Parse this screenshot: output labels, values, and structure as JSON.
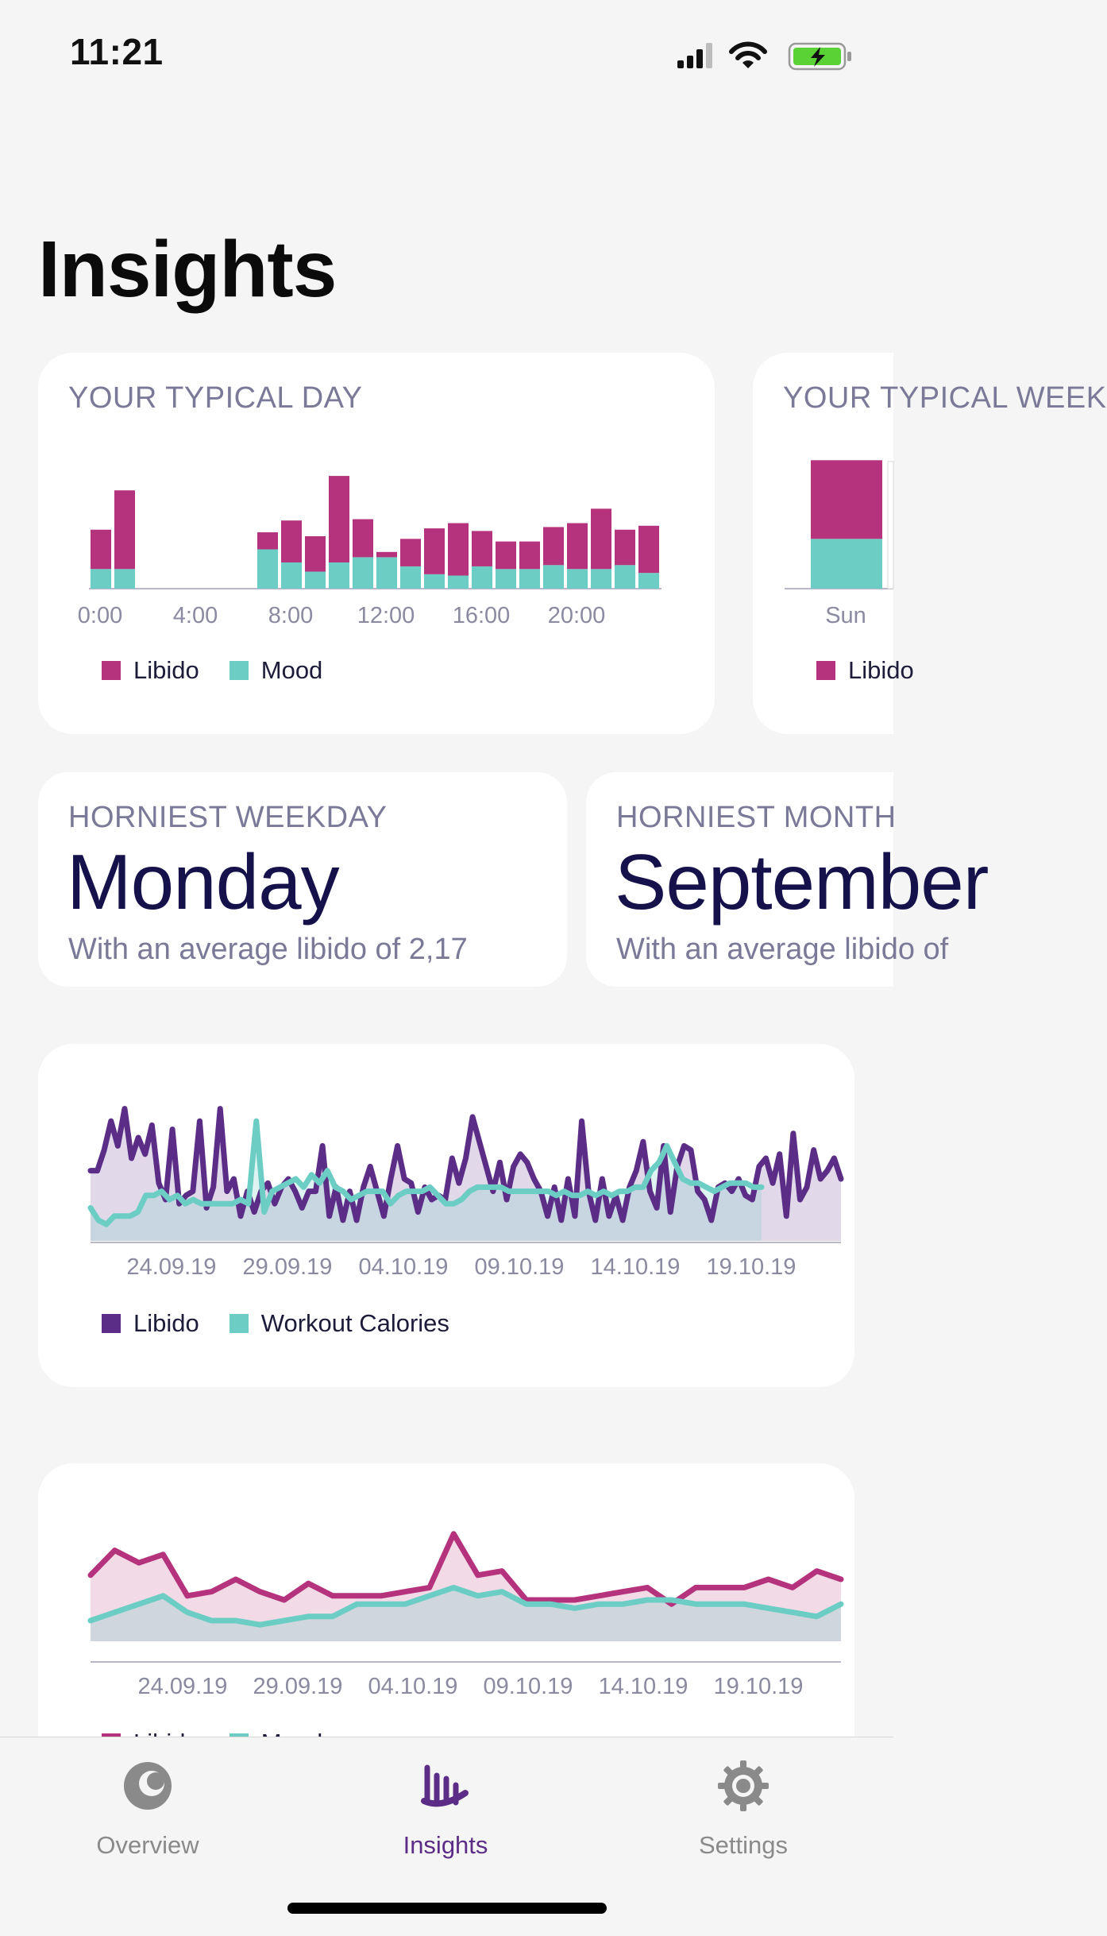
{
  "status_bar": {
    "time": "11:21"
  },
  "page": {
    "title": "Insights"
  },
  "colors": {
    "libido": "#b5337c",
    "mood": "#6ccdc5",
    "libido_dark": "#5b2d86",
    "workout": "#6ccdc5",
    "accent": "#5b2d86"
  },
  "typical_day": {
    "title": "YOUR TYPICAL DAY",
    "legend": [
      "Libido",
      "Mood"
    ],
    "chart_data": {
      "type": "bar",
      "stacked": true,
      "x_ticks": [
        "0:00",
        "4:00",
        "8:00",
        "12:00",
        "16:00",
        "20:00"
      ],
      "categories": [
        "0",
        "1",
        "2",
        "3",
        "4",
        "5",
        "6",
        "7",
        "8",
        "9",
        "10",
        "11",
        "12",
        "13",
        "14",
        "15",
        "16",
        "17",
        "18",
        "19",
        "20",
        "21",
        "22",
        "23"
      ],
      "series": [
        {
          "name": "Mood",
          "values": [
            0.75,
            0.75,
            0,
            0,
            0,
            0,
            0,
            1.5,
            1.0,
            0.65,
            1.0,
            1.2,
            1.2,
            0.85,
            0.55,
            0.5,
            0.85,
            0.75,
            0.75,
            0.9,
            0.75,
            0.75,
            0.9,
            0.6
          ]
        },
        {
          "name": "Libido",
          "values": [
            1.5,
            3.0,
            0,
            0,
            0,
            0,
            0,
            0.65,
            1.6,
            1.35,
            3.3,
            1.45,
            0.2,
            1.05,
            1.75,
            2.0,
            1.35,
            1.05,
            1.05,
            1.45,
            1.75,
            2.3,
            1.35,
            1.8
          ]
        }
      ],
      "ylim": [
        0,
        5
      ]
    }
  },
  "typical_week": {
    "title": "YOUR TYPICAL WEEK",
    "x_ticks": [
      "Sun"
    ],
    "legend": [
      "Libido"
    ],
    "chart_data": {
      "type": "bar",
      "stacked": true,
      "categories": [
        "Sun"
      ],
      "series": [
        {
          "name": "Mood",
          "values": [
            1.9
          ]
        },
        {
          "name": "Libido",
          "values": [
            3.0
          ]
        }
      ],
      "ylim": [
        0,
        5
      ]
    }
  },
  "horniest_weekday": {
    "title": "HORNIEST WEEKDAY",
    "value": "Monday",
    "subtitle": "With an average libido of 2,17"
  },
  "horniest_month": {
    "title": "HORNIEST MONTH",
    "value": "September",
    "subtitle": "With an average libido of"
  },
  "libido_workout": {
    "legend": [
      "Libido",
      "Workout Calories"
    ],
    "chart_data": {
      "type": "area",
      "x_ticks": [
        "24.09.19",
        "29.09.19",
        "04.10.19",
        "09.10.19",
        "14.10.19",
        "19.10.19"
      ],
      "series": [
        {
          "name": "Libido",
          "values": [
            1.7,
            1.7,
            2.2,
            2.9,
            2.3,
            3.2,
            2.0,
            2.5,
            2.1,
            2.8,
            1.4,
            1.0,
            2.7,
            0.9,
            1.1,
            1.2,
            2.9,
            0.8,
            1.3,
            3.2,
            1.2,
            1.5,
            0.6,
            1.2,
            0.7,
            1.2,
            1.4,
            0.9,
            1.3,
            1.5,
            1.2,
            0.8,
            1.2,
            1.2,
            2.3,
            0.6,
            1.3,
            0.5,
            1.2,
            0.5,
            1.3,
            1.8,
            1.2,
            0.6,
            1.5,
            2.3,
            1.5,
            1.4,
            0.7,
            1.3,
            1.0,
            1.1,
            1.0,
            2.0,
            1.4,
            2.0,
            3.0,
            2.4,
            1.8,
            1.2,
            1.9,
            1.0,
            1.8,
            2.1,
            1.9,
            1.5,
            1.2,
            0.6,
            1.3,
            0.5,
            1.5,
            0.6,
            2.9,
            1.2,
            0.5,
            1.5,
            0.6,
            1.1,
            0.5,
            1.3,
            1.7,
            2.4,
            1.2,
            0.8,
            2.3,
            0.7,
            1.8,
            2.3,
            2.2,
            1.2,
            1.0,
            0.5,
            1.3,
            1.4,
            1.2,
            1.5,
            1.1,
            1.0,
            1.8,
            2.0,
            1.4,
            2.1,
            0.6,
            2.6,
            1.0,
            1.3,
            2.2,
            1.5,
            1.7,
            2.0,
            1.5
          ]
        },
        {
          "name": "Workout Calories",
          "values": [
            0.8,
            0.5,
            0.4,
            0.6,
            0.6,
            0.6,
            0.7,
            1.1,
            1.1,
            1.2,
            1.0,
            1.1,
            0.9,
            1.0,
            0.9,
            0.9,
            0.9,
            0.9,
            0.9,
            1.0,
            0.9,
            2.9,
            0.7,
            1.2,
            1.3,
            1.4,
            1.5,
            1.3,
            1.6,
            1.4,
            1.7,
            1.3,
            1.2,
            1.0,
            1.1,
            1.2,
            1.2,
            1.2,
            0.9,
            1.1,
            1.2,
            1.2,
            1.2,
            1.3,
            1.1,
            0.9,
            0.9,
            1.0,
            1.2,
            1.3,
            1.3,
            1.3,
            1.3,
            1.2,
            1.2,
            1.2,
            1.2,
            1.2,
            1.2,
            1.1,
            1.2,
            1.1,
            1.1,
            1.2,
            1.1,
            1.2,
            1.1,
            1.2,
            1.2,
            1.3,
            1.3,
            1.7,
            1.9,
            2.3,
            1.9,
            1.5,
            1.4,
            1.4,
            1.3,
            1.2,
            1.3,
            1.4,
            1.4,
            1.4,
            1.3,
            1.3
          ]
        }
      ]
    }
  },
  "libido_mood": {
    "legend": [
      "Libido",
      "Mood"
    ],
    "chart_data": {
      "type": "area",
      "x_ticks": [
        "24.09.19",
        "29.09.19",
        "04.10.19",
        "09.10.19",
        "14.10.19",
        "19.10.19"
      ],
      "series": [
        {
          "name": "Libido",
          "values": [
            1.6,
            2.2,
            1.9,
            2.1,
            1.1,
            1.2,
            1.5,
            1.2,
            1.0,
            1.4,
            1.1,
            1.1,
            1.1,
            1.2,
            1.3,
            2.6,
            1.6,
            1.7,
            1.0,
            1.0,
            1.0,
            1.1,
            1.2,
            1.3,
            0.9,
            1.3,
            1.3,
            1.3,
            1.5,
            1.3,
            1.7,
            1.5
          ]
        },
        {
          "name": "Mood",
          "values": [
            0.5,
            0.7,
            0.9,
            1.1,
            0.7,
            0.5,
            0.5,
            0.4,
            0.5,
            0.6,
            0.6,
            0.9,
            0.9,
            0.9,
            1.1,
            1.3,
            1.1,
            1.2,
            0.9,
            0.9,
            0.8,
            0.9,
            0.9,
            1.0,
            1.0,
            0.9,
            0.9,
            0.9,
            0.8,
            0.7,
            0.6,
            0.9
          ]
        }
      ]
    }
  },
  "tabs": [
    {
      "label": "Overview",
      "icon": "overview-icon",
      "active": false
    },
    {
      "label": "Insights",
      "icon": "insights-icon",
      "active": true
    },
    {
      "label": "Settings",
      "icon": "settings-icon",
      "active": false
    }
  ]
}
